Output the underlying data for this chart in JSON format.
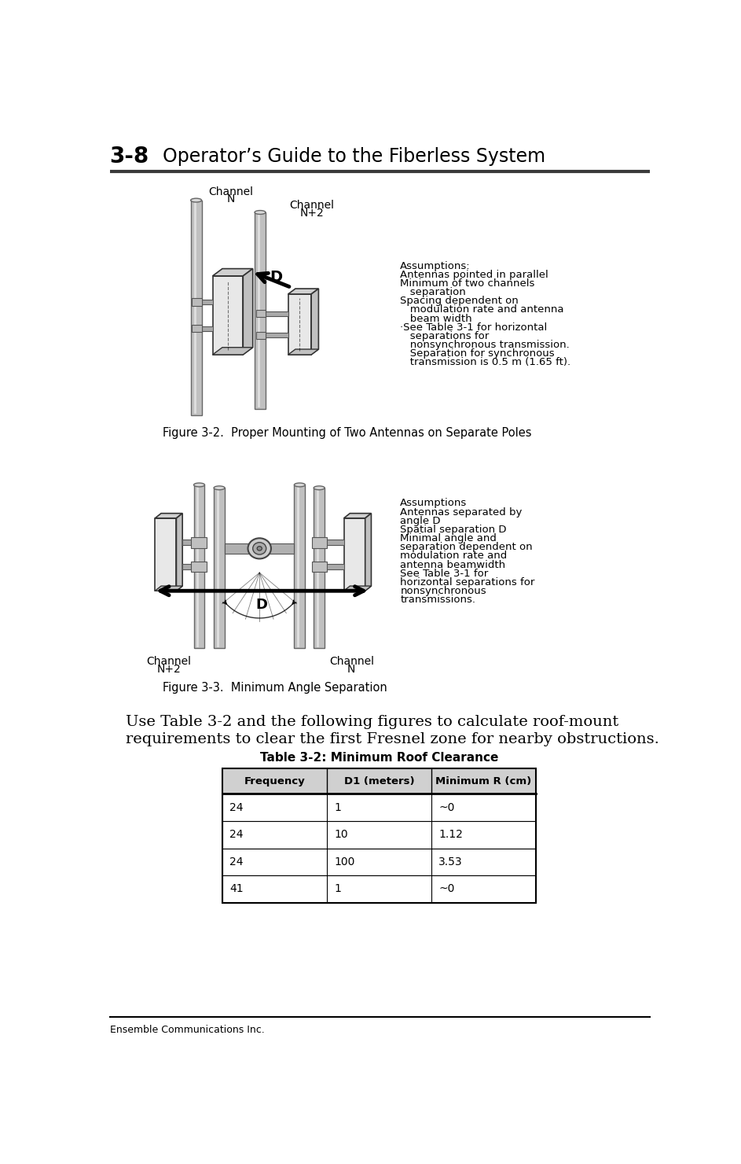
{
  "page_title_number": "3-8",
  "page_title_text": "Operator’s Guide to the Fiberless System",
  "footer_text": "Ensemble Communications Inc.",
  "fig2_caption": "Figure 3-2.  Proper Mounting of Two Antennas on Separate Poles",
  "fig3_caption": "Figure 3-3.  Minimum Angle Separation",
  "body_line1": "Use Table 3-2 and the following figures to calculate roof-mount",
  "body_line2": "requirements to clear the first Fresnel zone for nearby obstructions.",
  "fig2_assumptions_lines": [
    "Assumptions:",
    "Antennas pointed in parallel",
    "Minimum of two channels",
    "   separation",
    "Spacing dependent on",
    "   modulation rate and antenna",
    "   beam width",
    "·See Table 3-1 for horizontal",
    "   separations for",
    "   nonsynchronous transmission.",
    "   Separation for synchronous",
    "   transmission is 0.5 m (1.65 ft)."
  ],
  "fig3_assumptions_lines": [
    "Assumptions",
    "Antennas separated by",
    "angle D",
    "Spatial separation D",
    "Minimal angle and",
    "separation dependent on",
    "modulation rate and",
    "antenna beamwidth",
    "See Table 3-1 for",
    "horizontal separations for",
    "nonsynchronous",
    "transmissions."
  ],
  "table_title": "Table 3-2: Minimum Roof Clearance",
  "table_headers": [
    "Frequency",
    "D1 (meters)",
    "Minimum R (cm)"
  ],
  "table_rows": [
    [
      "24",
      "1",
      "~0"
    ],
    [
      "24",
      "10",
      "1.12"
    ],
    [
      "24",
      "100",
      "3.53"
    ],
    [
      "41",
      "1",
      "~0"
    ]
  ],
  "header_line_color": "#3a3a3a",
  "footer_line_color": "#000000",
  "bg_color": "#ffffff",
  "text_color": "#000000"
}
